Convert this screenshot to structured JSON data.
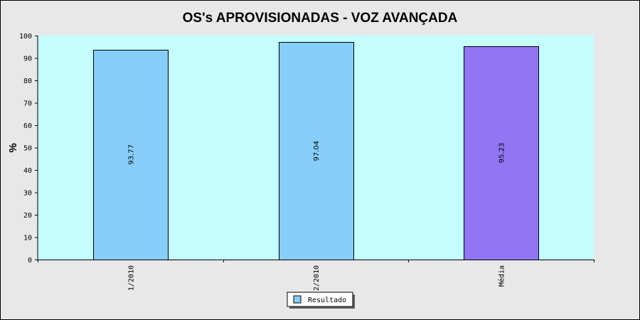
{
  "chart_data": {
    "type": "bar",
    "title": "OS's APROVISIONADAS - VOZ AVANÇADA",
    "xlabel": "",
    "ylabel": "%",
    "ylim": [
      0,
      100
    ],
    "yticks": [
      "0",
      "10",
      "20",
      "30",
      "40",
      "50",
      "60",
      "70",
      "80",
      "90",
      "100"
    ],
    "categories": [
      "1/2010",
      "2/2010",
      "Média"
    ],
    "series": [
      {
        "name": "Resultado",
        "values": [
          93.77,
          97.04,
          95.23
        ]
      }
    ],
    "value_labels": [
      "93.77",
      "97.04",
      "95.23"
    ],
    "legend": {
      "position": "bottom-center",
      "entries": [
        "Resultado"
      ]
    },
    "grid": false,
    "colors": {
      "background": "#e8e8e8",
      "plot_background": "#c4feff",
      "bar": "#87cefa",
      "bar_average": "#9176f3",
      "legend_swatch": "#87cefa"
    }
  }
}
